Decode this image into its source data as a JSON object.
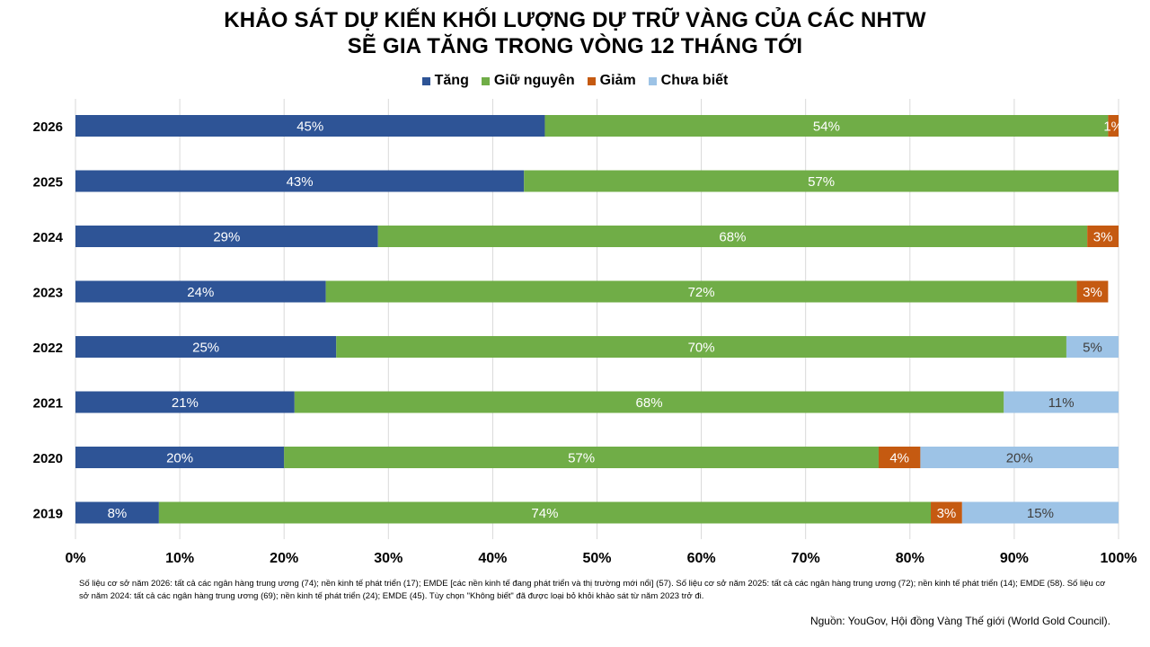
{
  "title_line1": "KHẢO SÁT DỰ KIẾN KHỐI LƯỢNG DỰ TRỮ VÀNG CỦA CÁC NHTW",
  "title_line2": "SẼ GIA TĂNG TRONG VÒNG 12 THÁNG TỚI",
  "colors": {
    "Tăng": "#2E5496",
    "Giữ nguyên": "#70AD47",
    "Giảm": "#C55A11",
    "Chưa biết": "#9DC3E6"
  },
  "chart_data": {
    "type": "bar",
    "orientation": "horizontal",
    "stacked": true,
    "categories": [
      "2026",
      "2025",
      "2024",
      "2023",
      "2022",
      "2021",
      "2020",
      "2019"
    ],
    "series": [
      {
        "name": "Tăng",
        "values": [
          45,
          43,
          29,
          24,
          25,
          21,
          20,
          8
        ]
      },
      {
        "name": "Giữ nguyên",
        "values": [
          54,
          57,
          68,
          72,
          70,
          68,
          57,
          74
        ]
      },
      {
        "name": "Giảm",
        "values": [
          1,
          0,
          3,
          3,
          0,
          0,
          4,
          3
        ]
      },
      {
        "name": "Chưa biết",
        "values": [
          0,
          0,
          0,
          0,
          5,
          11,
          20,
          15
        ]
      }
    ],
    "xlim": [
      0,
      100
    ],
    "xticks": [
      "0%",
      "10%",
      "20%",
      "30%",
      "40%",
      "50%",
      "60%",
      "70%",
      "80%",
      "90%",
      "100%"
    ],
    "grid": true,
    "legend": "top"
  },
  "footnote": "Số liệu cơ sở năm 2026: tất cả các ngân hàng trung ương (74); nền kinh tế phát triển (17); EMDE  [các nền kinh tế đang phát triển và thị trường mới nổi] (57). Số liệu cơ sở năm 2025: tất cả các ngân hàng trung ương (72); nền kinh tế phát triển (14); EMDE   (58). Số liệu cơ sở năm 2024: tất cả các ngân hàng trung ương (69); nền kinh tế phát triển (24); EMDE   (45). Tùy chọn \"Không biết\" đã được loại bỏ khỏi khảo sát từ năm 2023 trở đi.",
  "source": "Nguồn: YouGov, Hội đồng Vàng Thế giới (World Gold Council)."
}
